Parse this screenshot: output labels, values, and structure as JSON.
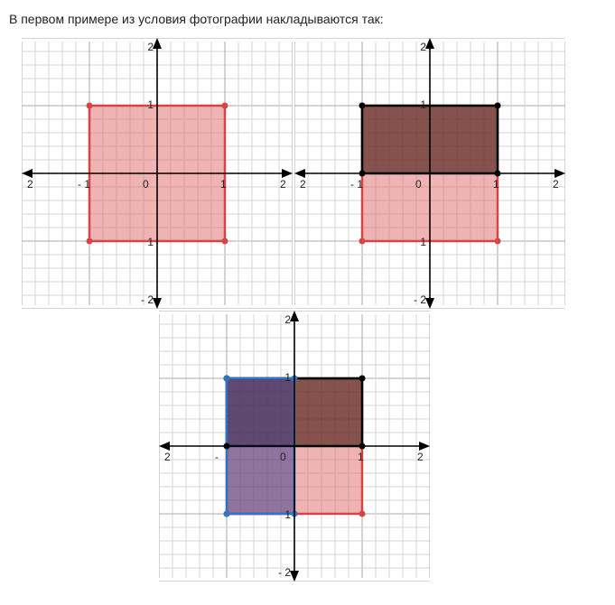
{
  "caption": "В первом примере из условия фотографии накладываются так:",
  "colors": {
    "red_fill": "#e06868",
    "red_stroke": "#d64545",
    "dark_fill": "#5a2a22",
    "dark_stroke": "#000000",
    "blue_fill": "#3f3f8f",
    "blue_stroke": "#2f74c0",
    "grid_minor": "#d4d4d4",
    "grid_major": "#a8a8a8",
    "axis": "#000000"
  },
  "plots": [
    {
      "id": "plot-1",
      "tick_labels": {
        "x_neg2": "2",
        "x_neg1": "- 1",
        "origin": "0",
        "x_pos1": "1",
        "x_pos2": "2",
        "y_pos2": "2",
        "y_pos1": "1",
        "y_neg1": "1",
        "y_neg2": "- 2"
      },
      "shapes": [
        {
          "name": "red-square",
          "x": [
            -1,
            1
          ],
          "y": [
            -1,
            1
          ],
          "color": "red"
        }
      ]
    },
    {
      "id": "plot-2",
      "tick_labels": {
        "x_neg2": "2",
        "x_neg1": "- 1",
        "origin": "0",
        "x_pos1": "1",
        "x_pos2": "2",
        "y_pos2": "2",
        "y_pos1": "1",
        "y_neg1": "1",
        "y_neg2": "- 2"
      },
      "shapes": [
        {
          "name": "red-square",
          "x": [
            -1,
            1
          ],
          "y": [
            -1,
            1
          ],
          "color": "red"
        },
        {
          "name": "dark-rectangle",
          "x": [
            -1,
            1
          ],
          "y": [
            0,
            1
          ],
          "color": "dark"
        }
      ]
    },
    {
      "id": "plot-3",
      "tick_labels": {
        "x_neg2": "2",
        "x_neg1": "-",
        "origin": "0",
        "x_pos1": "1",
        "x_pos2": "2",
        "y_pos2": "2",
        "y_pos1": "1",
        "y_neg1": "1",
        "y_neg2": "- 2"
      },
      "shapes": [
        {
          "name": "red-square",
          "x": [
            -1,
            1
          ],
          "y": [
            -1,
            1
          ],
          "color": "red"
        },
        {
          "name": "dark-rectangle",
          "x": [
            -1,
            1
          ],
          "y": [
            0,
            1
          ],
          "color": "dark"
        },
        {
          "name": "blue-rectangle",
          "x": [
            -1,
            0
          ],
          "y": [
            -1,
            1
          ],
          "color": "blue"
        }
      ]
    }
  ]
}
